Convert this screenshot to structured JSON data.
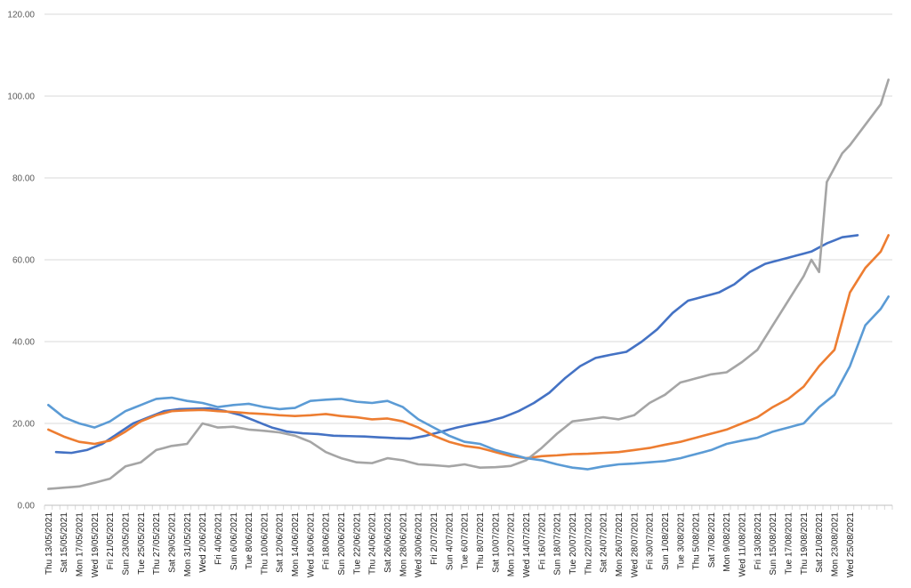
{
  "chart_data": {
    "type": "line",
    "ylim": [
      0,
      120
    ],
    "yticks": [
      "0.00",
      "20.00",
      "40.00",
      "60.00",
      "80.00",
      "100.00",
      "120.00"
    ],
    "grid": true,
    "x_start_date": "2021-05-13",
    "n_days": 106,
    "x_labels": [
      "Thu 13/05/2021",
      "Sat 15/05/2021",
      "Mon 17/05/2021",
      "Wed 19/05/2021",
      "Fri 21/05/2021",
      "Sun 23/05/2021",
      "Tue 25/05/2021",
      "Thu 27/05/2021",
      "Sat 29/05/2021",
      "Mon 31/05/2021",
      "Wed 2/06/2021",
      "Fri 4/06/2021",
      "Sun 6/06/2021",
      "Tue 8/06/2021",
      "Thu 10/06/2021",
      "Sat 12/06/2021",
      "Mon 14/06/2021",
      "Wed 16/06/2021",
      "Fri 18/06/2021",
      "Sun 20/06/2021",
      "Tue 22/06/2021",
      "Thu 24/06/2021",
      "Sat 26/06/2021",
      "Mon 28/06/2021",
      "Wed 30/06/2021",
      "Fri 2/07/2021",
      "Sun 4/07/2021",
      "Tue 6/07/2021",
      "Thu 8/07/2021",
      "Sat 10/07/2021",
      "Mon 12/07/2021",
      "Wed 14/07/2021",
      "Fri 16/07/2021",
      "Sun 18/07/2021",
      "Tue 20/07/2021",
      "Thu 22/07/2021",
      "Sat 24/07/2021",
      "Mon 26/07/2021",
      "Wed 28/07/2021",
      "Fri 30/07/2021",
      "Sun 1/08/2021",
      "Tue 3/08/2021",
      "Thu 5/08/2021",
      "Sat 7/08/2021",
      "Mon 9/08/2021",
      "Wed 11/08/2021",
      "Fri 13/08/2021",
      "Sun 15/08/2021",
      "Tue 17/08/2021",
      "Thu 19/08/2021",
      "Sat 21/08/2021",
      "Mon 23/08/2021",
      "Wed 25/08/2021"
    ],
    "series": [
      {
        "color": "#4472C4",
        "start_index": 1,
        "anchors": [
          [
            1,
            13
          ],
          [
            3,
            12.8
          ],
          [
            5,
            13.5
          ],
          [
            7,
            15
          ],
          [
            9,
            17.5
          ],
          [
            11,
            20
          ],
          [
            13,
            21.5
          ],
          [
            15,
            23
          ],
          [
            17,
            23.5
          ],
          [
            19,
            23.6
          ],
          [
            21,
            23.7
          ],
          [
            23,
            23
          ],
          [
            25,
            22
          ],
          [
            27,
            20.5
          ],
          [
            29,
            19
          ],
          [
            31,
            18
          ],
          [
            33,
            17.6
          ],
          [
            35,
            17.4
          ],
          [
            37,
            17
          ],
          [
            39,
            16.9
          ],
          [
            41,
            16.8
          ],
          [
            43,
            16.6
          ],
          [
            45,
            16.4
          ],
          [
            47,
            16.3
          ],
          [
            49,
            17
          ],
          [
            51,
            18
          ],
          [
            53,
            19
          ],
          [
            55,
            19.8
          ],
          [
            57,
            20.5
          ],
          [
            59,
            21.5
          ],
          [
            61,
            23
          ],
          [
            63,
            25
          ],
          [
            65,
            27.5
          ],
          [
            67,
            31
          ],
          [
            69,
            34
          ],
          [
            71,
            36
          ],
          [
            73,
            36.8
          ],
          [
            75,
            37.5
          ],
          [
            77,
            40
          ],
          [
            79,
            43
          ],
          [
            81,
            47
          ],
          [
            83,
            50
          ],
          [
            85,
            51
          ],
          [
            87,
            52
          ],
          [
            89,
            54
          ],
          [
            91,
            57
          ],
          [
            93,
            59
          ],
          [
            95,
            60
          ],
          [
            97,
            61
          ],
          [
            99,
            62
          ],
          [
            101,
            64
          ],
          [
            103,
            65.5
          ],
          [
            105,
            66
          ]
        ]
      },
      {
        "color": "#ED7D31",
        "start_index": 0,
        "anchors": [
          [
            0,
            18.5
          ],
          [
            2,
            16.8
          ],
          [
            4,
            15.5
          ],
          [
            6,
            15
          ],
          [
            8,
            15.8
          ],
          [
            10,
            18
          ],
          [
            12,
            20.5
          ],
          [
            14,
            22
          ],
          [
            16,
            23
          ],
          [
            18,
            23.2
          ],
          [
            20,
            23.3
          ],
          [
            22,
            23
          ],
          [
            24,
            22.8
          ],
          [
            26,
            22.5
          ],
          [
            28,
            22.3
          ],
          [
            30,
            22
          ],
          [
            32,
            21.8
          ],
          [
            34,
            22
          ],
          [
            36,
            22.3
          ],
          [
            38,
            21.8
          ],
          [
            40,
            21.5
          ],
          [
            42,
            21
          ],
          [
            44,
            21.2
          ],
          [
            46,
            20.5
          ],
          [
            48,
            19
          ],
          [
            50,
            17
          ],
          [
            52,
            15.5
          ],
          [
            54,
            14.5
          ],
          [
            56,
            14
          ],
          [
            58,
            13
          ],
          [
            60,
            12
          ],
          [
            62,
            11.5
          ],
          [
            64,
            12
          ],
          [
            66,
            12.2
          ],
          [
            68,
            12.5
          ],
          [
            70,
            12.6
          ],
          [
            72,
            12.8
          ],
          [
            74,
            13
          ],
          [
            76,
            13.5
          ],
          [
            78,
            14
          ],
          [
            80,
            14.8
          ],
          [
            82,
            15.5
          ],
          [
            84,
            16.5
          ],
          [
            86,
            17.5
          ],
          [
            88,
            18.5
          ],
          [
            90,
            20
          ],
          [
            92,
            21.5
          ],
          [
            94,
            24
          ],
          [
            96,
            26
          ],
          [
            98,
            29
          ],
          [
            100,
            34
          ],
          [
            102,
            38
          ],
          [
            104,
            52
          ],
          [
            106,
            58
          ],
          [
            108,
            62
          ],
          [
            109,
            66
          ]
        ]
      },
      {
        "color": "#A5A5A5",
        "start_index": 0,
        "anchors": [
          [
            0,
            4
          ],
          [
            2,
            4.3
          ],
          [
            4,
            4.6
          ],
          [
            6,
            5.5
          ],
          [
            8,
            6.5
          ],
          [
            10,
            9.5
          ],
          [
            12,
            10.5
          ],
          [
            14,
            13.5
          ],
          [
            16,
            14.5
          ],
          [
            18,
            15
          ],
          [
            20,
            20
          ],
          [
            22,
            19
          ],
          [
            24,
            19.2
          ],
          [
            26,
            18.5
          ],
          [
            28,
            18.2
          ],
          [
            30,
            17.8
          ],
          [
            32,
            17
          ],
          [
            34,
            15.5
          ],
          [
            36,
            13
          ],
          [
            38,
            11.5
          ],
          [
            40,
            10.5
          ],
          [
            42,
            10.3
          ],
          [
            44,
            11.5
          ],
          [
            46,
            11
          ],
          [
            48,
            10
          ],
          [
            50,
            9.8
          ],
          [
            52,
            9.5
          ],
          [
            54,
            10
          ],
          [
            56,
            9.2
          ],
          [
            58,
            9.3
          ],
          [
            60,
            9.6
          ],
          [
            62,
            11
          ],
          [
            64,
            14
          ],
          [
            66,
            17.5
          ],
          [
            68,
            20.5
          ],
          [
            70,
            21
          ],
          [
            72,
            21.5
          ],
          [
            74,
            21
          ],
          [
            76,
            22
          ],
          [
            78,
            25
          ],
          [
            80,
            27
          ],
          [
            82,
            30
          ],
          [
            84,
            31
          ],
          [
            86,
            32
          ],
          [
            88,
            32.5
          ],
          [
            90,
            35
          ],
          [
            92,
            38
          ],
          [
            94,
            44
          ],
          [
            96,
            50
          ],
          [
            98,
            56
          ],
          [
            99,
            60
          ],
          [
            100,
            57
          ],
          [
            101,
            79
          ],
          [
            103,
            86
          ],
          [
            104,
            88
          ],
          [
            106,
            93
          ],
          [
            108,
            98
          ],
          [
            109,
            104
          ]
        ]
      },
      {
        "color": "#5B9BD5",
        "start_index": 0,
        "anchors": [
          [
            0,
            24.5
          ],
          [
            2,
            21.5
          ],
          [
            4,
            20
          ],
          [
            6,
            19
          ],
          [
            8,
            20.5
          ],
          [
            10,
            23
          ],
          [
            12,
            24.5
          ],
          [
            14,
            26
          ],
          [
            16,
            26.3
          ],
          [
            18,
            25.5
          ],
          [
            20,
            25
          ],
          [
            22,
            24
          ],
          [
            24,
            24.5
          ],
          [
            26,
            24.8
          ],
          [
            28,
            24
          ],
          [
            30,
            23.5
          ],
          [
            32,
            23.8
          ],
          [
            34,
            25.5
          ],
          [
            36,
            25.8
          ],
          [
            38,
            26
          ],
          [
            40,
            25.3
          ],
          [
            42,
            25
          ],
          [
            44,
            25.5
          ],
          [
            46,
            24
          ],
          [
            48,
            21
          ],
          [
            50,
            19
          ],
          [
            52,
            17
          ],
          [
            54,
            15.5
          ],
          [
            56,
            15
          ],
          [
            58,
            13.5
          ],
          [
            60,
            12.5
          ],
          [
            62,
            11.5
          ],
          [
            64,
            11
          ],
          [
            66,
            10
          ],
          [
            68,
            9.2
          ],
          [
            70,
            8.8
          ],
          [
            72,
            9.5
          ],
          [
            74,
            10
          ],
          [
            76,
            10.2
          ],
          [
            78,
            10.5
          ],
          [
            80,
            10.8
          ],
          [
            82,
            11.5
          ],
          [
            84,
            12.5
          ],
          [
            86,
            13.5
          ],
          [
            88,
            15
          ],
          [
            90,
            15.8
          ],
          [
            92,
            16.5
          ],
          [
            94,
            18
          ],
          [
            96,
            19
          ],
          [
            98,
            20
          ],
          [
            100,
            24
          ],
          [
            102,
            27
          ],
          [
            104,
            34
          ],
          [
            106,
            44
          ],
          [
            108,
            48
          ],
          [
            109,
            51
          ]
        ]
      }
    ]
  }
}
